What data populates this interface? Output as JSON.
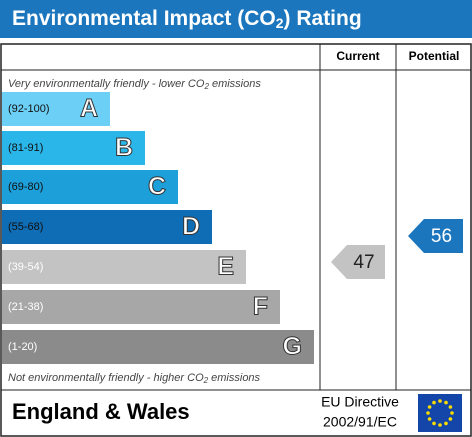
{
  "header": {
    "title": {
      "before": "Environmental Impact (CO",
      "sub": "2",
      "after": ") Rating"
    }
  },
  "columns": {
    "current": "Current",
    "potential": "Potential"
  },
  "top_note": {
    "before": "Very environmentally friendly - lower CO",
    "sub": "2",
    "after": " emissions"
  },
  "bottom_note": {
    "before": "Not environmentally friendly - higher CO",
    "sub": "2",
    "after": " emissions"
  },
  "bands": [
    {
      "range": "(92-100)",
      "letter": "A",
      "color": "#6ccff6"
    },
    {
      "range": "(81-91)",
      "letter": "B",
      "color": "#2bb6ea"
    },
    {
      "range": "(69-80)",
      "letter": "C",
      "color": "#1d9fd9"
    },
    {
      "range": "(55-68)",
      "letter": "D",
      "color": "#0f6db5"
    },
    {
      "range": "(39-54)",
      "letter": "E",
      "color": "#c3c3c3"
    },
    {
      "range": "(21-38)",
      "letter": "F",
      "color": "#a7a7a7"
    },
    {
      "range": "(1-20)",
      "letter": "G",
      "color": "#8b8b8b"
    }
  ],
  "current": {
    "value": 47,
    "color": "#c3c3c3"
  },
  "potential": {
    "value": 56,
    "color": "#1b76bd"
  },
  "footer": {
    "region": "England & Wales",
    "directive_line1": "EU Directive",
    "directive_line2": "2002/91/EC"
  }
}
